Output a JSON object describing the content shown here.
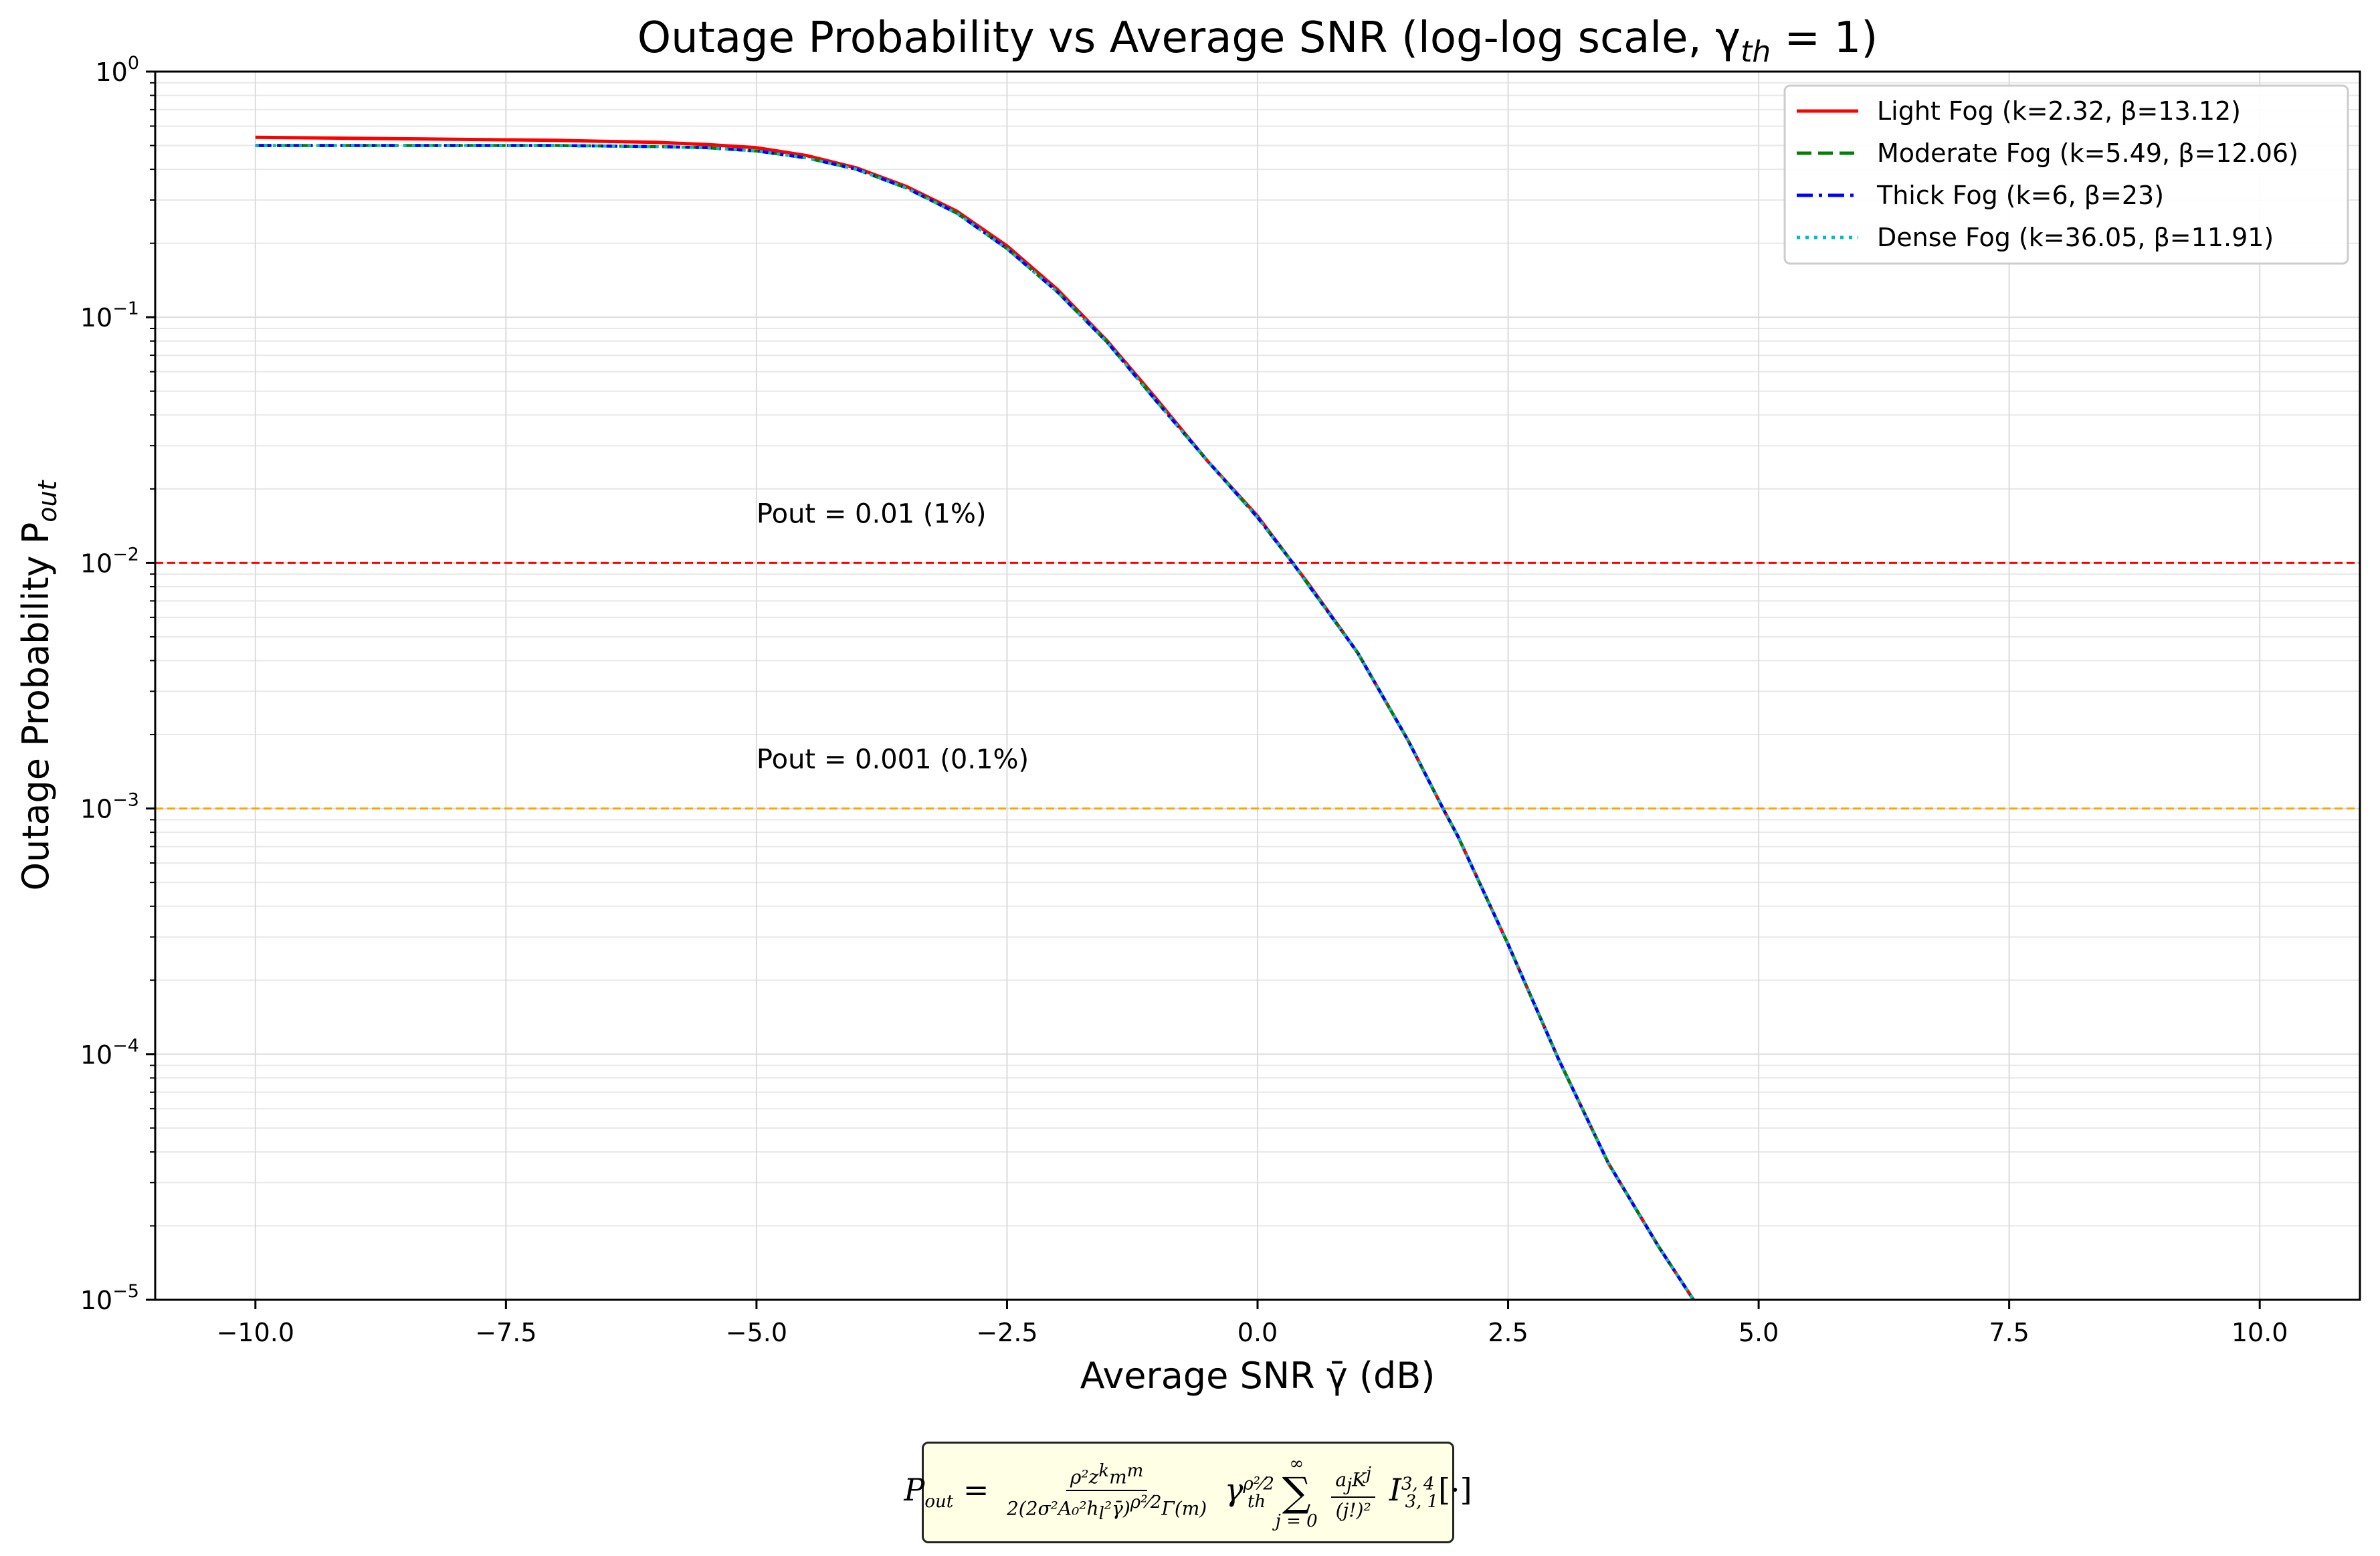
{
  "chart_data": {
    "type": "line",
    "title": "Outage Probability vs Average SNR (log-log scale, γ",
    "title_sub": "th",
    "title_end": " = 1)",
    "xlabel": "Average SNR γ̄ (dB)",
    "ylabel": "Outage Probability P",
    "ylabel_sub": "out",
    "xlim": [
      -11,
      11
    ],
    "ylim": [
      1e-05,
      1
    ],
    "y_scale": "log",
    "grid": true,
    "legend_position": "top-right",
    "x_ticks": [
      -10,
      -7.5,
      -5,
      -2.5,
      0,
      2.5,
      5,
      7.5,
      10
    ],
    "x_tick_labels": [
      "−10.0",
      "−7.5",
      "−5.0",
      "−2.5",
      "0.0",
      "2.5",
      "5.0",
      "7.5",
      "10.0"
    ],
    "y_ticks": [
      1,
      0.1,
      0.01,
      0.001,
      0.0001,
      1e-05
    ],
    "y_tick_labels": [
      {
        "base": "10",
        "exp": "0"
      },
      {
        "base": "10",
        "exp": "−1"
      },
      {
        "base": "10",
        "exp": "−2"
      },
      {
        "base": "10",
        "exp": "−3"
      },
      {
        "base": "10",
        "exp": "−4"
      },
      {
        "base": "10",
        "exp": "−5"
      }
    ],
    "series": [
      {
        "name": "Light Fog (k=2.32, β=13.12)",
        "color": "#ff0000",
        "style": "solid",
        "x": [
          -10,
          -9,
          -8,
          -7,
          -6,
          -5.5,
          -5,
          -4.5,
          -4,
          -3.5,
          -3,
          -2.5,
          -2,
          -1.5,
          -1,
          -0.5,
          0,
          0.35,
          0.5,
          1,
          1.5,
          1.85,
          2,
          2.5,
          3,
          3.5,
          4,
          4.35
        ],
        "y": [
          0.54,
          0.535,
          0.53,
          0.525,
          0.515,
          0.505,
          0.49,
          0.455,
          0.405,
          0.34,
          0.27,
          0.195,
          0.13,
          0.08,
          0.046,
          0.026,
          0.0155,
          0.01,
          0.0083,
          0.0043,
          0.0019,
          0.001,
          0.00077,
          0.00028,
          9.6e-05,
          3.6e-05,
          1.65e-05,
          1e-05
        ]
      },
      {
        "name": "Moderate Fog (k=5.49, β=12.06)",
        "color": "#008000",
        "style": "dashed",
        "x": [
          -10,
          -9,
          -8,
          -7,
          -6,
          -5.5,
          -5,
          -4.5,
          -4,
          -3.5,
          -3,
          -2.5,
          -2,
          -1.5,
          -1,
          -0.5,
          0,
          0.35,
          0.5,
          1,
          1.5,
          1.85,
          2,
          2.5,
          3,
          3.5,
          4,
          4.35
        ],
        "y": [
          0.5,
          0.5,
          0.5,
          0.5,
          0.495,
          0.49,
          0.475,
          0.445,
          0.4,
          0.335,
          0.265,
          0.19,
          0.127,
          0.079,
          0.045,
          0.026,
          0.0153,
          0.01,
          0.0082,
          0.0043,
          0.0019,
          0.001,
          0.00077,
          0.00028,
          9.6e-05,
          3.6e-05,
          1.65e-05,
          1e-05
        ]
      },
      {
        "name": "Thick Fog (k=6, β=23)",
        "color": "#0000ff",
        "style": "dashdot",
        "x": [
          -10,
          -9,
          -8,
          -7,
          -6,
          -5.5,
          -5,
          -4.5,
          -4,
          -3.5,
          -3,
          -2.5,
          -2,
          -1.5,
          -1,
          -0.5,
          0,
          0.35,
          0.5,
          1,
          1.5,
          1.85,
          2,
          2.5,
          3,
          3.5,
          4,
          4.35
        ],
        "y": [
          0.5,
          0.5,
          0.5,
          0.5,
          0.495,
          0.49,
          0.475,
          0.445,
          0.4,
          0.335,
          0.265,
          0.19,
          0.127,
          0.079,
          0.045,
          0.026,
          0.0153,
          0.01,
          0.0082,
          0.0043,
          0.0019,
          0.001,
          0.00077,
          0.00028,
          9.6e-05,
          3.6e-05,
          1.65e-05,
          1e-05
        ]
      },
      {
        "name": "Dense Fog (k=36.05, β=11.91)",
        "color": "#00bfbf",
        "style": "dotted",
        "x": [
          -10,
          -9,
          -8,
          -7,
          -6,
          -5.5,
          -5,
          -4.5,
          -4,
          -3.5,
          -3,
          -2.5,
          -2,
          -1.5,
          -1,
          -0.5,
          0,
          0.35,
          0.5,
          1,
          1.5,
          1.85,
          2,
          2.5,
          3,
          3.5,
          4,
          4.35
        ],
        "y": [
          0.5,
          0.5,
          0.5,
          0.5,
          0.495,
          0.49,
          0.475,
          0.445,
          0.4,
          0.335,
          0.265,
          0.19,
          0.127,
          0.079,
          0.045,
          0.026,
          0.0153,
          0.01,
          0.0082,
          0.0043,
          0.0019,
          0.001,
          0.00077,
          0.00028,
          9.6e-05,
          3.6e-05,
          1.65e-05,
          1e-05
        ]
      }
    ],
    "reference_lines": [
      {
        "y": 0.01,
        "label": "Pout = 0.01 (1%)",
        "label_x": -5,
        "color": "#ff0000",
        "style": "dashed"
      },
      {
        "y": 0.001,
        "label": "Pout = 0.001 (0.1%)",
        "label_x": -5,
        "color": "#ffa500",
        "style": "dashed"
      }
    ]
  },
  "formula": {
    "lhs": "P",
    "lhs_sub": "out",
    "eq": "=",
    "num": "ρ²z",
    "num_sup": "k",
    "num_tail": "m",
    "num_tail_sup": "m",
    "den": "2(2σ²A₀²h",
    "den_sub": "l",
    "den_tail": "²γ̄)",
    "den_sup": "ρ²⁄2",
    "den_end": "Γ(m)",
    "gamma": "γ",
    "gamma_sup": "ρ²⁄2",
    "gamma_sub": "th",
    "sum": "∑",
    "sum_sup": "∞",
    "sum_sub": "j = 0",
    "frac2_num": "a",
    "frac2_num_sub": "j",
    "frac2_num_tail": "K",
    "frac2_num_sup": "j",
    "frac2_den": "(j!)²",
    "tail": "I",
    "tail_sup": "3, 4",
    "tail_sub": "3, 1",
    "tail_end": "[·]"
  }
}
